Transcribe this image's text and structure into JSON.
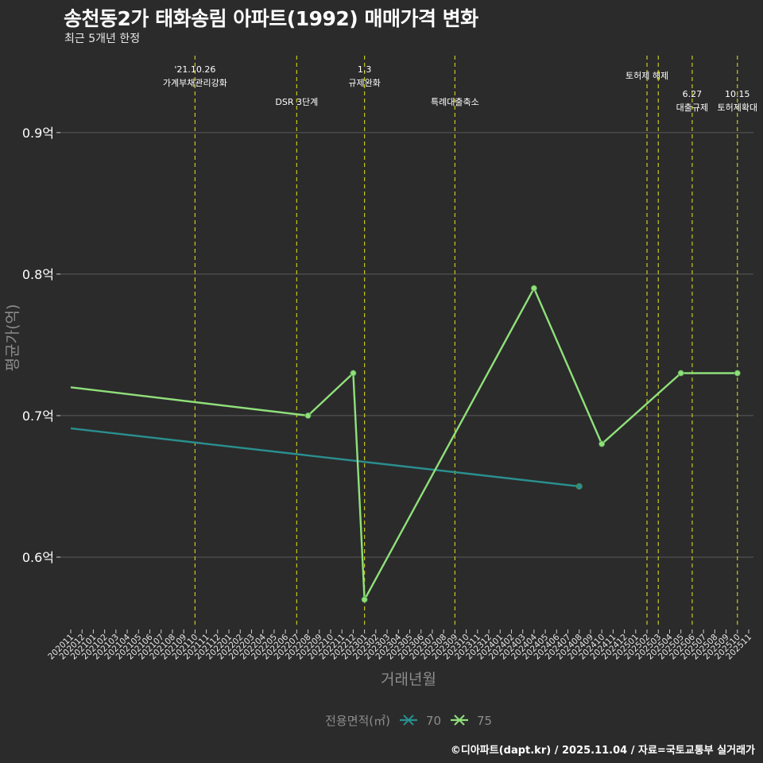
{
  "title": "송천동2가 태화송림 아파트(1992) 매매가격 변화",
  "subtitle": "최근 5개년 한정",
  "caption": "©디아파트(dapt.kr) / 2025.11.04 / 자료=국토교통부 실거래가",
  "colors": {
    "background": "#2b2b2b",
    "grid": "#5a5a5a",
    "event_line": "#c8c81e",
    "series_70": "#2a8f8f",
    "series_75": "#90e07a",
    "axis_title": "#8c8c8c"
  },
  "chart_data": {
    "type": "line",
    "xlabel": "거래년월",
    "ylabel": "평균가(억)",
    "ylim": [
      0.55,
      0.96
    ],
    "yticks": [
      0.6,
      0.7,
      0.8,
      0.9
    ],
    "ytick_labels": [
      "0.6억",
      "0.7억",
      "0.8억",
      "0.9억"
    ],
    "categories": [
      "202011",
      "202012",
      "202101",
      "202102",
      "202103",
      "202104",
      "202105",
      "202106",
      "202107",
      "202108",
      "202109",
      "202110",
      "202111",
      "202112",
      "202201",
      "202202",
      "202203",
      "202204",
      "202205",
      "202206",
      "202207",
      "202208",
      "202209",
      "202210",
      "202211",
      "202212",
      "202301",
      "202302",
      "202303",
      "202304",
      "202305",
      "202306",
      "202307",
      "202308",
      "202309",
      "202310",
      "202311",
      "202312",
      "202401",
      "202402",
      "202403",
      "202404",
      "202405",
      "202406",
      "202407",
      "202408",
      "202409",
      "202410",
      "202411",
      "202412",
      "202501",
      "202502",
      "202503",
      "202504",
      "202505",
      "202506",
      "202507",
      "202508",
      "202509",
      "202510",
      "202511"
    ],
    "legend_title": "전용면적(㎡)",
    "series": [
      {
        "name": "70",
        "color": "#2a8f8f",
        "points": [
          {
            "x": "202011",
            "y": 0.691,
            "marker": false
          },
          {
            "x": "202408",
            "y": 0.65,
            "marker": true
          }
        ]
      },
      {
        "name": "75",
        "color": "#90e07a",
        "points": [
          {
            "x": "202011",
            "y": 0.72,
            "marker": false
          },
          {
            "x": "202208",
            "y": 0.7,
            "marker": true
          },
          {
            "x": "202212",
            "y": 0.73,
            "marker": true
          },
          {
            "x": "202301",
            "y": 0.57,
            "marker": true
          },
          {
            "x": "202404",
            "y": 0.79,
            "marker": true
          },
          {
            "x": "202410",
            "y": 0.68,
            "marker": true
          },
          {
            "x": "202505",
            "y": 0.73,
            "marker": true
          },
          {
            "x": "202510",
            "y": 0.73,
            "marker": true
          }
        ]
      }
    ],
    "events": [
      {
        "x": "202110",
        "lines": [
          "'21.10.26",
          "가계부채관리강화"
        ],
        "tier": 0
      },
      {
        "x": "202207",
        "lines": [
          "DSR 3단계"
        ],
        "tier": 2
      },
      {
        "x": "202301",
        "lines": [
          "1.3",
          "규제완화"
        ],
        "tier": 0
      },
      {
        "x": "202309",
        "lines": [
          "특례대출축소"
        ],
        "tier": 2
      },
      {
        "x": "202502",
        "lines": [
          "토허제 해제"
        ],
        "tier": 1
      },
      {
        "x": "202503",
        "lines": [],
        "tier": 1
      },
      {
        "x": "202506",
        "lines": [
          "6.27",
          "대출규제"
        ],
        "tier": 3
      },
      {
        "x": "202510",
        "lines": [
          "10.15",
          "토허제확대"
        ],
        "tier": 3
      }
    ]
  }
}
